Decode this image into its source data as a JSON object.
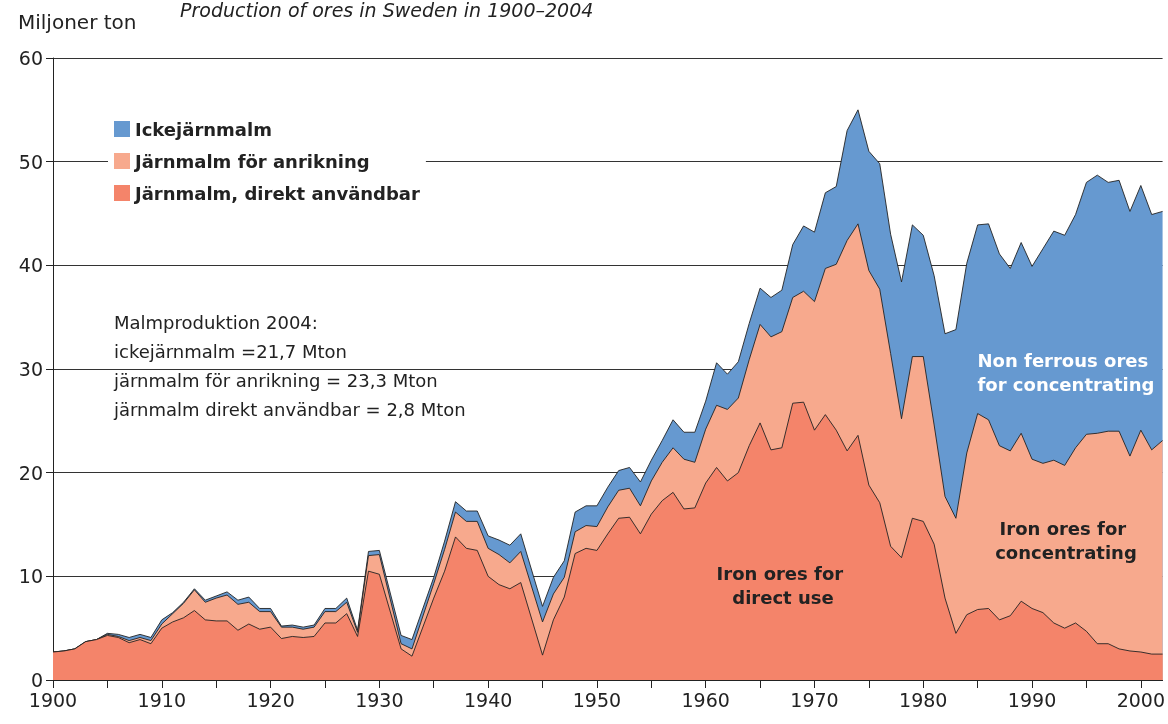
{
  "chart_data": {
    "type": "area",
    "stacked": true,
    "title": "Production of ores in Sweden in 1900–2004",
    "ylabel": "Miljoner ton",
    "x": [
      1900,
      1901,
      1902,
      1903,
      1904,
      1905,
      1906,
      1907,
      1908,
      1909,
      1910,
      1911,
      1912,
      1913,
      1914,
      1915,
      1916,
      1917,
      1918,
      1919,
      1920,
      1921,
      1922,
      1923,
      1924,
      1925,
      1926,
      1927,
      1928,
      1929,
      1930,
      1932,
      1933,
      1935,
      1936,
      1937,
      1938,
      1939,
      1940,
      1941,
      1942,
      1943,
      1945,
      1946,
      1947,
      1948,
      1949,
      1950,
      1951,
      1952,
      1953,
      1954,
      1955,
      1956,
      1957,
      1958,
      1959,
      1960,
      1961,
      1962,
      1963,
      1964,
      1965,
      1966,
      1967,
      1968,
      1969,
      1970,
      1971,
      1972,
      1973,
      1974,
      1975,
      1976,
      1977,
      1978,
      1979,
      1980,
      1981,
      1982,
      1983,
      1984,
      1985,
      1986,
      1987,
      1988,
      1989,
      1990,
      1991,
      1992,
      1993,
      1994,
      1995,
      1996,
      1997,
      1998,
      1999,
      2000,
      2001,
      2002
    ],
    "series": [
      {
        "name": "Järnmalm, direkt användbar",
        "color": "#f4846a",
        "values": [
          2.7,
          2.8,
          3.0,
          3.7,
          3.9,
          4.3,
          4.1,
          3.6,
          3.9,
          3.5,
          5.0,
          5.6,
          6.0,
          6.7,
          5.8,
          5.7,
          5.7,
          4.8,
          5.4,
          4.9,
          5.1,
          4.0,
          4.2,
          4.1,
          4.2,
          5.5,
          5.5,
          6.4,
          4.2,
          10.5,
          10.2,
          3.0,
          2.3,
          7.9,
          10.5,
          13.8,
          12.7,
          12.5,
          10.0,
          9.2,
          8.8,
          9.4,
          2.4,
          5.8,
          8.0,
          12.2,
          12.7,
          12.5,
          14.1,
          15.6,
          15.7,
          14.1,
          16.0,
          17.3,
          18.1,
          16.5,
          16.6,
          19.0,
          20.5,
          19.2,
          20.0,
          22.6,
          24.8,
          22.2,
          22.4,
          26.7,
          26.8,
          24.1,
          25.6,
          24.1,
          22.1,
          23.6,
          18.8,
          17.1,
          12.9,
          11.8,
          15.6,
          15.3,
          13.1,
          7.9,
          4.5,
          6.3,
          6.8,
          6.9,
          5.8,
          6.2,
          7.6,
          6.9,
          6.5,
          5.5,
          5.0,
          5.5,
          4.7,
          3.5,
          3.5,
          3.0,
          2.8,
          2.7,
          2.5,
          2.5
        ]
      },
      {
        "name": "Järnmalm för anrikning",
        "color": "#f7a98d",
        "values": [
          0,
          0,
          0,
          0,
          0,
          0.1,
          0.1,
          0.2,
          0.2,
          0.3,
          0.4,
          0.8,
          1.4,
          2.0,
          1.7,
          2.2,
          2.5,
          2.5,
          2.1,
          1.7,
          1.5,
          1.1,
          0.9,
          0.8,
          0.9,
          1.1,
          1.1,
          1.1,
          0.4,
          1.5,
          1.9,
          0.5,
          0.7,
          1.4,
          2.1,
          2.4,
          2.6,
          2.8,
          2.7,
          2.9,
          2.5,
          3.0,
          3.2,
          2.5,
          1.9,
          2.1,
          2.2,
          2.3,
          2.6,
          2.7,
          2.8,
          2.7,
          3.2,
          3.7,
          4.3,
          4.8,
          4.4,
          5.2,
          6.0,
          6.9,
          7.2,
          8.3,
          9.5,
          10.9,
          11.2,
          10.2,
          10.7,
          12.4,
          14.1,
          16.0,
          20.3,
          20.4,
          20.7,
          20.6,
          18.6,
          13.4,
          15.6,
          15.9,
          11.5,
          9.8,
          11.1,
          15.6,
          18.9,
          18.2,
          16.8,
          15.9,
          16.2,
          14.4,
          14.4,
          15.7,
          15.7,
          16.9,
          19.0,
          20.3,
          20.5,
          21.0,
          18.8,
          21.4,
          19.7,
          20.6
        ]
      },
      {
        "name": "Ickejärnmalm",
        "color": "#6699d0",
        "values": [
          0,
          0,
          0,
          0,
          0,
          0.1,
          0.2,
          0.3,
          0.3,
          0.3,
          0.4,
          0.1,
          0.1,
          0.1,
          0.2,
          0.2,
          0.3,
          0.4,
          0.5,
          0.3,
          0.3,
          0.1,
          0.2,
          0.2,
          0.2,
          0.3,
          0.3,
          0.4,
          0.2,
          0.4,
          0.4,
          0.8,
          0.9,
          0.6,
          0.8,
          1.0,
          1.0,
          1.0,
          1.2,
          1.4,
          1.7,
          1.7,
          1.5,
          1.6,
          1.6,
          1.9,
          1.9,
          2.0,
          1.9,
          1.9,
          2.0,
          2.3,
          2.0,
          2.1,
          2.7,
          2.6,
          2.9,
          2.7,
          4.1,
          3.4,
          3.5,
          3.5,
          3.5,
          3.8,
          4.0,
          5.1,
          6.3,
          6.7,
          7.3,
          7.5,
          10.6,
          11.0,
          11.5,
          12.1,
          11.5,
          13.2,
          12.7,
          11.7,
          14.4,
          15.7,
          18.2,
          18.3,
          18.2,
          18.9,
          18.5,
          17.6,
          18.4,
          18.6,
          20.7,
          22.1,
          22.2,
          22.5,
          24.3,
          24.9,
          24.0,
          24.2,
          23.6,
          23.6,
          22.7,
          22.1
        ]
      }
    ],
    "xlim": [
      1900,
      2002
    ],
    "xticks": [
      1900,
      {
        "value": 1905,
        "label": null
      },
      1910,
      {
        "value": 1915,
        "label": null
      },
      1920,
      {
        "value": 1925,
        "label": null
      },
      1930,
      {
        "value": 1935,
        "label": null
      },
      1940,
      {
        "value": 1945,
        "label": null
      },
      1950,
      {
        "value": 1955,
        "label": null
      },
      1960,
      {
        "value": 1965,
        "label": null
      },
      1970,
      {
        "value": 1975,
        "label": null
      },
      1980,
      {
        "value": 1985,
        "label": null
      },
      1990,
      {
        "value": 1995,
        "label": null
      },
      2000
    ],
    "ylim": [
      0,
      60
    ],
    "yticks": [
      0,
      10,
      20,
      30,
      40,
      50,
      60
    ],
    "grid": "y",
    "legend": "top left",
    "marker": "none",
    "line_style": "solid",
    "annotations": [
      "Malmproduktion 2004:",
      "ickejärnmalm =21,7 Mton",
      "järnmalm för anrikning = 23,3 Mton",
      "järnmalm direkt användbar = 2,8 Mton",
      "Iron ores for direct use",
      "Iron ores for concentrating",
      "Non ferrous ores for concentrating"
    ]
  }
}
